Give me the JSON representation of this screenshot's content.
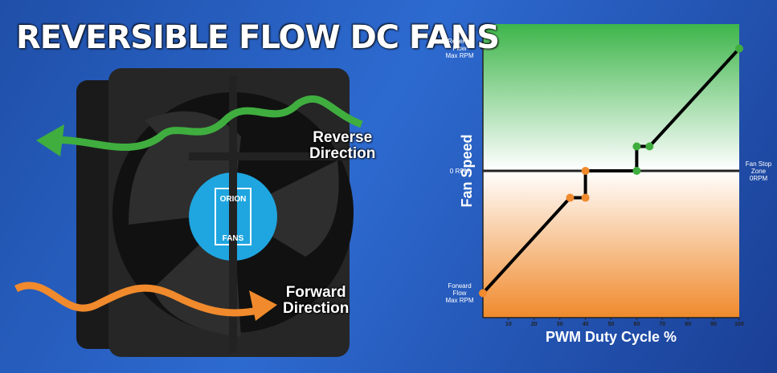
{
  "title": "REVERSIBLE FLOW DC FANS",
  "fan": {
    "logo_top": "ORION",
    "logo_bottom": "FANS",
    "reverse_label": "Reverse\nDirection",
    "forward_label": "Forward\nDirection"
  },
  "chart_data": {
    "type": "line",
    "x": [
      0,
      34,
      40,
      40,
      60,
      60,
      65,
      100
    ],
    "values": [
      -100,
      -22,
      -22,
      0,
      0,
      20,
      20,
      100
    ],
    "color": "#000000",
    "marker_colors": [
      "#f08a2c",
      "#f08a2c",
      "#f08a2c",
      "#f08a2c",
      "#3fae3f",
      "#3fae3f",
      "#3fae3f",
      "#3fae3f"
    ],
    "xlim": [
      0,
      100
    ],
    "xticks": [
      10,
      20,
      30,
      40,
      50,
      60,
      70,
      80,
      90,
      100
    ],
    "ylim": [
      -120,
      120
    ],
    "yticks": [
      {
        "value": 100,
        "label": "Reverse\nFlow\nMax RPM"
      },
      {
        "value": 0,
        "label": "0 RPM"
      },
      {
        "value": -100,
        "label": "Forward\nFlow\nMax RPM"
      }
    ],
    "annotation": {
      "y": 0,
      "label": "Fan Stop\nZone\n0RPM"
    },
    "x_label": "PWM Duty Cycle %",
    "y_label": "Fan Speed"
  }
}
